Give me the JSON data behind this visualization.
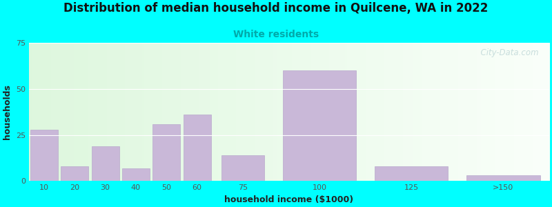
{
  "title": "Distribution of median household income in Quilcene, WA in 2022",
  "subtitle": "White residents",
  "xlabel": "household income ($1000)",
  "ylabel": "households",
  "bg_color": "#00FFFF",
  "bar_color": "#c9b8d8",
  "bar_edge_color": "#b8a8cc",
  "categories": [
    "10",
    "20",
    "30",
    "40",
    "50",
    "60",
    "75",
    "100",
    "125",
    ">150"
  ],
  "values": [
    28,
    8,
    19,
    7,
    31,
    36,
    14,
    60,
    8,
    3
  ],
  "ylim": [
    0,
    75
  ],
  "yticks": [
    0,
    25,
    50,
    75
  ],
  "title_fontsize": 12,
  "subtitle_fontsize": 10,
  "subtitle_color": "#00aaaa",
  "axis_label_fontsize": 9,
  "tick_fontsize": 8,
  "watermark": "  City-Data.com"
}
